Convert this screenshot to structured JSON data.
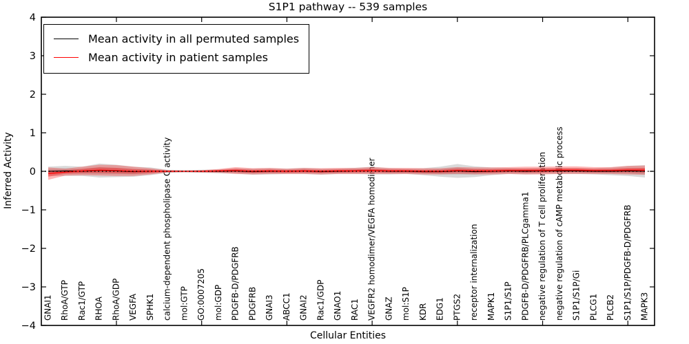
{
  "chart_data": {
    "type": "line",
    "title": "S1P1 pathway -- 539 samples",
    "xlabel": "Cellular Entities",
    "ylabel": "Inferred Activity",
    "ylim": [
      -4,
      4
    ],
    "yticks": [
      "4",
      "3",
      "2",
      "1",
      "0",
      "−1",
      "−2",
      "−3",
      "−4"
    ],
    "ytick_values": [
      4,
      3,
      2,
      1,
      0,
      -1,
      -2,
      -3,
      -4
    ],
    "grid": false,
    "legend_position": "upper left",
    "zero_line": {
      "style": "dotted",
      "color": "#000000",
      "y": 0
    },
    "categories": [
      "GNAI1",
      "RhoA/GTP",
      "Rac1/GTP",
      "RHOA",
      "RhoA/GDP",
      "VEGFA",
      "SPHK1",
      "calcium-dependent phospholipase C activity",
      "mol:GTP",
      "GO:0007205",
      "mol:GDP",
      "PDGFB-D/PDGFRB",
      "PDGFRB",
      "GNAI3",
      "ABCC1",
      "GNAI2",
      "Rac1/GDP",
      "GNAO1",
      "RAC1",
      "VEGFR2 homodimer/VEGFA homodimer",
      "GNAZ",
      "mol:S1P",
      "KDR",
      "EDG1",
      "PTGS2",
      "receptor internalization",
      "MAPK1",
      "S1P1/S1P",
      "PDGFB-D/PDGFRB/PLCgamma1",
      "negative regulation of T cell proliferation",
      "negative regulation of cAMP metabolic process",
      "S1P1/S1P/Gi",
      "PLCG1",
      "PLCB2",
      "S1P1/S1P/PDGFB-D/PDGFRB",
      "MAPK3"
    ],
    "xtick_indices": [
      4,
      9,
      14,
      19,
      24,
      29,
      34
    ],
    "series": [
      {
        "name": "Mean activity in all permuted samples",
        "color": "#000000",
        "band_color": "#aaaaaa",
        "band_opacity": 0.45,
        "values": [
          0.0,
          0.01,
          0.0,
          0.02,
          0.01,
          -0.01,
          0.0,
          0.0,
          0.0,
          0.0,
          0.0,
          0.01,
          -0.01,
          0.0,
          0.0,
          0.01,
          -0.01,
          0.0,
          0.01,
          0.02,
          0.0,
          0.0,
          -0.01,
          -0.01,
          0.01,
          -0.01,
          0.0,
          0.01,
          0.0,
          0.01,
          0.01,
          0.01,
          0.0,
          0.0,
          0.01,
          0.0
        ],
        "band": [
          0.12,
          0.13,
          0.12,
          0.18,
          0.16,
          0.13,
          0.1,
          0.04,
          0.03,
          0.04,
          0.05,
          0.07,
          0.08,
          0.08,
          0.07,
          0.08,
          0.08,
          0.07,
          0.08,
          0.1,
          0.08,
          0.07,
          0.09,
          0.13,
          0.18,
          0.14,
          0.1,
          0.08,
          0.08,
          0.08,
          0.08,
          0.08,
          0.08,
          0.1,
          0.13,
          0.16
        ]
      },
      {
        "name": "Mean activity in patient samples",
        "color": "#ff0000",
        "band_color": "#ff0000",
        "band_opacity": 0.28,
        "values": [
          -0.06,
          -0.02,
          0.01,
          0.03,
          0.02,
          0.0,
          0.0,
          0.0,
          0.0,
          0.0,
          0.01,
          0.02,
          0.0,
          0.01,
          0.0,
          0.01,
          0.0,
          0.01,
          0.01,
          0.02,
          0.01,
          0.01,
          0.0,
          0.0,
          0.02,
          0.01,
          0.01,
          0.02,
          0.02,
          0.02,
          0.03,
          0.03,
          0.02,
          0.02,
          0.03,
          0.03
        ],
        "band": [
          0.16,
          0.09,
          0.11,
          0.14,
          0.14,
          0.12,
          0.08,
          0.03,
          0.02,
          0.03,
          0.05,
          0.09,
          0.08,
          0.08,
          0.07,
          0.08,
          0.08,
          0.08,
          0.08,
          0.09,
          0.08,
          0.08,
          0.08,
          0.08,
          0.09,
          0.09,
          0.09,
          0.09,
          0.1,
          0.1,
          0.1,
          0.1,
          0.09,
          0.09,
          0.11,
          0.12
        ]
      }
    ]
  }
}
